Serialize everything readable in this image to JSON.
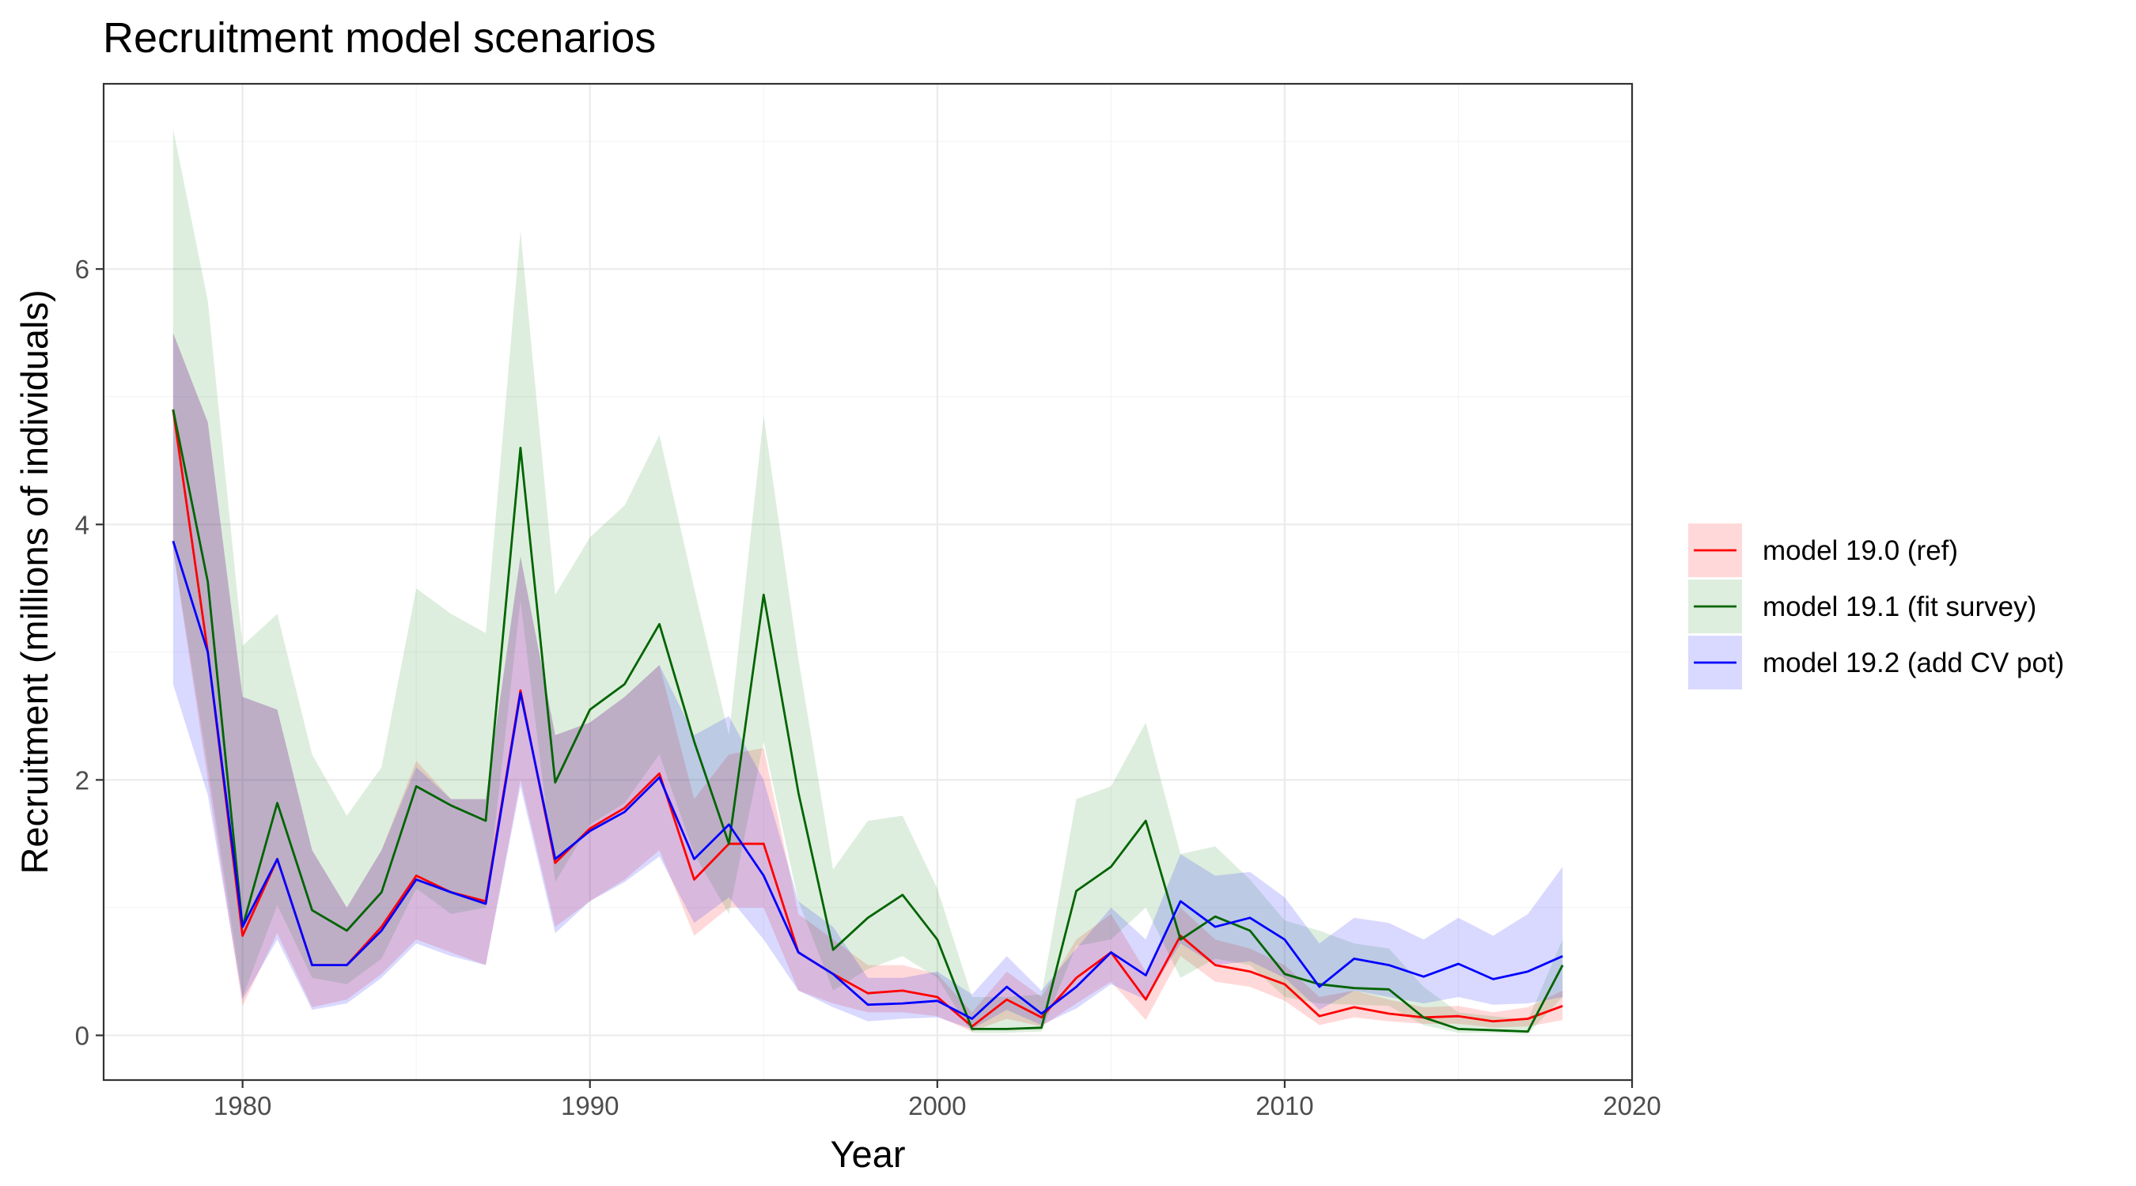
{
  "chart_data": {
    "type": "line",
    "title": "Recruitment model scenarios",
    "xlabel": "Year",
    "ylabel": "Recruitment (millions of individuals)",
    "xlim": [
      1976,
      2020
    ],
    "ylim": [
      -0.35,
      7.45
    ],
    "x_ticks": [
      1980,
      1990,
      2000,
      2010,
      2020
    ],
    "y_ticks": [
      0,
      2,
      4,
      6
    ],
    "grid": true,
    "legend_position": "right",
    "x": [
      1978,
      1979,
      1980,
      1981,
      1982,
      1983,
      1984,
      1985,
      1986,
      1987,
      1988,
      1989,
      1990,
      1991,
      1992,
      1993,
      1994,
      1995,
      1996,
      1997,
      1998,
      1999,
      2000,
      2001,
      2002,
      2003,
      2004,
      2005,
      2006,
      2007,
      2008,
      2009,
      2010,
      2011,
      2012,
      2013,
      2014,
      2015,
      2016,
      2017,
      2018
    ],
    "series": [
      {
        "name": "model 19.0 (ref)",
        "color": "#ff0000",
        "fill": "#ff0000",
        "values": [
          4.9,
          3.0,
          0.78,
          1.38,
          0.55,
          0.55,
          0.85,
          1.25,
          1.12,
          1.05,
          2.7,
          1.35,
          1.62,
          1.78,
          2.05,
          1.22,
          1.5,
          1.5,
          0.65,
          0.48,
          0.33,
          0.35,
          0.3,
          0.07,
          0.28,
          0.14,
          0.45,
          0.65,
          0.28,
          0.78,
          0.55,
          0.5,
          0.4,
          0.15,
          0.22,
          0.17,
          0.14,
          0.15,
          0.11,
          0.13,
          0.23
        ],
        "lower": [
          3.8,
          2.0,
          0.23,
          0.8,
          0.22,
          0.28,
          0.48,
          0.75,
          0.65,
          0.55,
          2.0,
          0.85,
          1.05,
          1.22,
          1.45,
          0.78,
          1.0,
          1.0,
          0.35,
          0.25,
          0.18,
          0.18,
          0.15,
          0.03,
          0.13,
          0.07,
          0.25,
          0.42,
          0.12,
          0.62,
          0.42,
          0.38,
          0.27,
          0.08,
          0.14,
          0.11,
          0.09,
          0.09,
          0.06,
          0.07,
          0.12
        ],
        "upper": [
          5.5,
          4.8,
          2.65,
          2.55,
          1.45,
          1.0,
          1.45,
          2.15,
          1.85,
          1.85,
          3.75,
          2.35,
          2.45,
          2.65,
          2.9,
          1.85,
          2.2,
          2.25,
          0.95,
          0.75,
          0.55,
          0.55,
          0.48,
          0.18,
          0.5,
          0.3,
          0.75,
          0.95,
          0.5,
          1.0,
          0.75,
          0.68,
          0.55,
          0.3,
          0.35,
          0.28,
          0.22,
          0.23,
          0.18,
          0.22,
          0.35
        ]
      },
      {
        "name": "model 19.1 (fit survey)",
        "color": "#006400",
        "fill": "#228b22",
        "values": [
          4.9,
          3.55,
          0.85,
          1.82,
          0.98,
          0.82,
          1.12,
          1.95,
          1.8,
          1.68,
          4.6,
          1.98,
          2.55,
          2.75,
          3.22,
          2.3,
          1.5,
          3.45,
          1.9,
          0.67,
          0.92,
          1.1,
          0.75,
          0.05,
          0.05,
          0.06,
          1.13,
          1.32,
          1.68,
          0.75,
          0.93,
          0.82,
          0.48,
          0.4,
          0.37,
          0.36,
          0.14,
          0.05,
          0.04,
          0.03,
          0.55
        ],
        "lower": [
          3.8,
          2.1,
          0.3,
          1.02,
          0.45,
          0.4,
          0.6,
          1.15,
          0.95,
          1.0,
          3.4,
          1.2,
          1.65,
          1.82,
          2.2,
          1.42,
          0.95,
          2.3,
          1.05,
          0.35,
          0.52,
          0.62,
          0.45,
          0.02,
          0.02,
          0.03,
          0.7,
          0.75,
          1.0,
          0.45,
          0.6,
          0.55,
          0.3,
          0.25,
          0.24,
          0.23,
          0.08,
          0.02,
          0.02,
          0.01,
          0.3
        ],
        "upper": [
          7.1,
          5.75,
          3.05,
          3.3,
          2.2,
          1.72,
          2.1,
          3.5,
          3.3,
          3.15,
          6.3,
          3.45,
          3.9,
          4.15,
          4.7,
          3.5,
          2.35,
          4.85,
          2.95,
          1.3,
          1.68,
          1.72,
          1.15,
          0.3,
          0.3,
          0.32,
          1.85,
          1.95,
          2.45,
          1.42,
          1.48,
          1.22,
          0.9,
          0.82,
          0.72,
          0.68,
          0.38,
          0.18,
          0.15,
          0.12,
          0.75
        ]
      },
      {
        "name": "model 19.2 (add CV pot)",
        "color": "#0000ff",
        "fill": "#0000ff",
        "values": [
          3.87,
          3.0,
          0.85,
          1.38,
          0.55,
          0.55,
          0.82,
          1.22,
          1.12,
          1.03,
          2.68,
          1.38,
          1.6,
          1.75,
          2.02,
          1.38,
          1.65,
          1.25,
          0.65,
          0.48,
          0.24,
          0.25,
          0.27,
          0.13,
          0.38,
          0.17,
          0.38,
          0.65,
          0.47,
          1.05,
          0.85,
          0.92,
          0.75,
          0.38,
          0.6,
          0.55,
          0.46,
          0.56,
          0.44,
          0.5,
          0.62
        ],
        "lower": [
          2.75,
          1.88,
          0.28,
          0.75,
          0.2,
          0.25,
          0.45,
          0.72,
          0.62,
          0.55,
          1.95,
          0.8,
          1.05,
          1.2,
          1.4,
          0.88,
          1.08,
          0.75,
          0.35,
          0.22,
          0.11,
          0.13,
          0.14,
          0.05,
          0.2,
          0.08,
          0.21,
          0.4,
          0.28,
          0.72,
          0.55,
          0.58,
          0.45,
          0.2,
          0.35,
          0.3,
          0.25,
          0.3,
          0.24,
          0.25,
          0.3
        ],
        "upper": [
          5.5,
          4.8,
          2.65,
          2.55,
          1.45,
          1.0,
          1.45,
          2.1,
          1.85,
          1.85,
          3.75,
          2.35,
          2.45,
          2.65,
          2.9,
          2.35,
          2.5,
          2.0,
          1.05,
          0.85,
          0.45,
          0.45,
          0.5,
          0.32,
          0.62,
          0.35,
          0.68,
          1.0,
          0.75,
          1.42,
          1.25,
          1.28,
          1.08,
          0.72,
          0.92,
          0.88,
          0.75,
          0.92,
          0.78,
          0.95,
          1.32
        ]
      }
    ]
  }
}
